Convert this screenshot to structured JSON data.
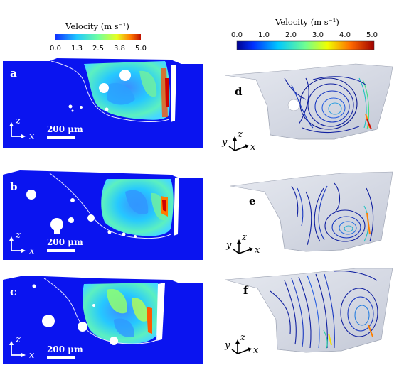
{
  "figure": {
    "colorbar_left": {
      "title": "Velocity (m s⁻¹)",
      "ticks": [
        "0.0",
        "1.3",
        "2.5",
        "3.8",
        "5.0"
      ]
    },
    "colorbar_right": {
      "title": "Velocity (m s⁻¹)",
      "ticks": [
        "0.0",
        "1.0",
        "2.0",
        "3.0",
        "4.0",
        "5.0"
      ]
    },
    "panels_2d": [
      {
        "letter": "a",
        "scale_bar": "200 μm",
        "axis_z": "z",
        "axis_x": "x"
      },
      {
        "letter": "b",
        "scale_bar": "200 μm",
        "axis_z": "z",
        "axis_x": "x"
      },
      {
        "letter": "c",
        "scale_bar": "200 μm",
        "axis_z": "z",
        "axis_x": "x"
      }
    ],
    "panels_3d": [
      {
        "letter": "d",
        "axis_y": "y",
        "axis_z": "z",
        "axis_x": "x"
      },
      {
        "letter": "e",
        "axis_y": "y",
        "axis_z": "z",
        "axis_x": "x"
      },
      {
        "letter": "f",
        "axis_y": "y",
        "axis_z": "z",
        "axis_x": "x"
      }
    ],
    "colors": {
      "background_blue": "#0a14f0",
      "jet_stops": [
        "#00008f",
        "#0050ff",
        "#00d0ff",
        "#7fff80",
        "#ffff00",
        "#ff7000",
        "#a00000"
      ],
      "surface_gray": "#d8dce6"
    }
  }
}
